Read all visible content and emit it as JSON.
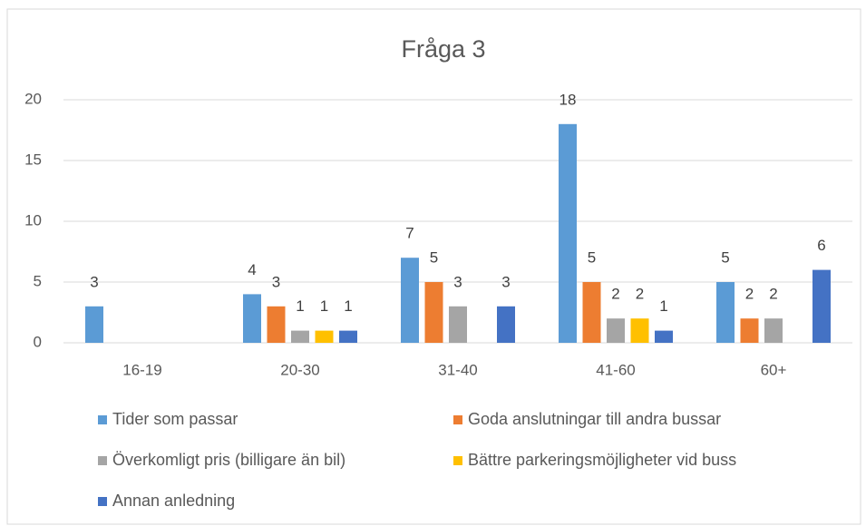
{
  "chart_data": {
    "type": "bar",
    "title": "Fråga 3",
    "categories": [
      "16-19",
      "20-30",
      "31-40",
      "41-60",
      "60+"
    ],
    "series": [
      {
        "name": "Tider som passar",
        "color": "#5b9bd5",
        "values": [
          3,
          4,
          7,
          18,
          5
        ]
      },
      {
        "name": "Goda anslutningar till andra bussar",
        "color": "#ed7d31",
        "values": [
          null,
          3,
          5,
          5,
          2
        ]
      },
      {
        "name": "Överkomligt pris (billigare än bil)",
        "color": "#a5a5a5",
        "values": [
          null,
          1,
          3,
          2,
          2
        ]
      },
      {
        "name": "Bättre parkeringsmöjligheter vid buss",
        "color": "#ffc000",
        "values": [
          null,
          1,
          null,
          2,
          null
        ]
      },
      {
        "name": "Annan anledning",
        "color": "#4472c4",
        "values": [
          null,
          1,
          3,
          1,
          6
        ]
      }
    ],
    "ylim": [
      0,
      20
    ],
    "yticks": [
      0,
      5,
      10,
      15,
      20
    ],
    "grid": true,
    "legend": "bottom"
  }
}
